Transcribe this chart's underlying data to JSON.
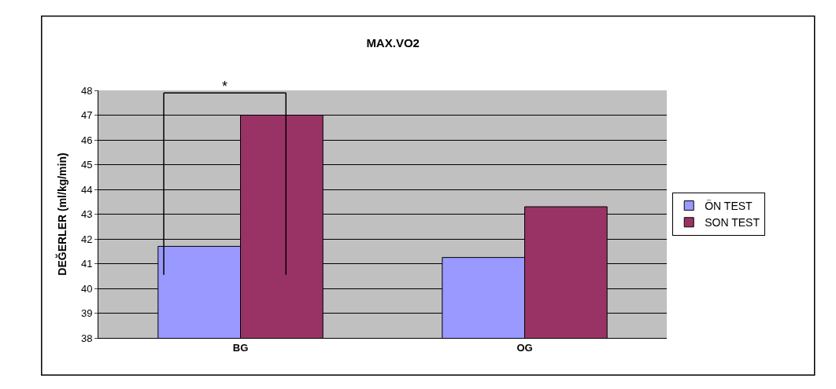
{
  "chart_data": {
    "type": "bar",
    "title": "MAX.VO2",
    "ylabel": "DEĞERLER (ml/kg/min)",
    "categories": [
      "BG",
      "OG"
    ],
    "series": [
      {
        "name": "ÖN TEST",
        "color": "#9999ff",
        "values": [
          41.7,
          41.25
        ]
      },
      {
        "name": "SON TEST",
        "color": "#993366",
        "values": [
          47.0,
          43.3
        ]
      }
    ],
    "ylim": [
      38,
      48
    ],
    "yticks": [
      38,
      39,
      40,
      41,
      42,
      43,
      44,
      45,
      46,
      47,
      48
    ],
    "grid": "y",
    "legend": "right",
    "annotations": [
      "*"
    ]
  }
}
